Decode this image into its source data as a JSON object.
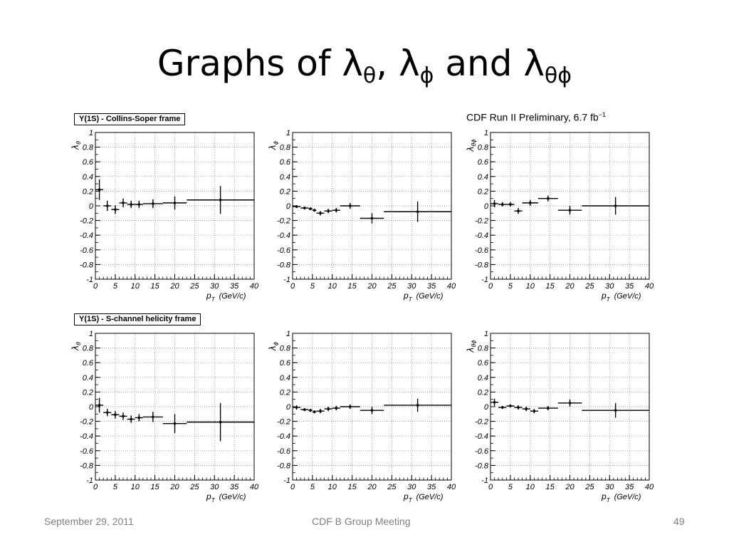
{
  "title": {
    "main": "Graphs of λ",
    "s1": "θ",
    "mid1": ", λ",
    "s2": "ϕ",
    "mid2": " and λ",
    "s3": "θϕ"
  },
  "preliminary": {
    "text": "CDF Run II Preliminary, 6.7 fb",
    "exp": "−1"
  },
  "frame_labels": {
    "top": "Υ(1S) - Collins-Soper frame",
    "bottom": "Υ(1S) - S-channel helicity frame"
  },
  "footer": {
    "date": "September 29, 2011",
    "center": "CDF B Group Meeting",
    "page": "49"
  },
  "chart_data": [
    {
      "type": "scatter",
      "ylabel_base": "λ",
      "ylabel_sub": "θ",
      "xlabel": "p",
      "xlabel_sub": "T",
      "xunit": "(GeV/c)",
      "xlim": [
        0,
        40
      ],
      "ylim": [
        -1,
        1
      ],
      "grid": true,
      "xticks": [
        "0",
        "5",
        "10",
        "15",
        "20",
        "25",
        "30",
        "35",
        "40"
      ],
      "yticks": [
        "1",
        "0.8",
        "0.6",
        "0.4",
        "0.2",
        "0",
        "-0.2",
        "-0.4",
        "-0.6",
        "-0.8",
        "-1"
      ],
      "points": [
        [
          1,
          0.22,
          0,
          2,
          0.14
        ],
        [
          3,
          0.0,
          2,
          4,
          0.07
        ],
        [
          5,
          -0.05,
          4,
          6,
          0.06
        ],
        [
          7,
          0.04,
          6,
          8,
          0.06
        ],
        [
          9,
          0.02,
          8,
          10,
          0.05
        ],
        [
          11,
          0.02,
          10,
          12,
          0.05
        ],
        [
          14.5,
          0.03,
          12,
          17,
          0.06
        ],
        [
          20,
          0.04,
          17,
          23,
          0.09
        ],
        [
          31.5,
          0.08,
          23,
          40,
          0.19
        ]
      ]
    },
    {
      "type": "scatter",
      "ylabel_base": "λ",
      "ylabel_sub": "ϕ",
      "xlabel": "p",
      "xlabel_sub": "T",
      "xunit": "(GeV/c)",
      "xlim": [
        0,
        40
      ],
      "ylim": [
        -1,
        1
      ],
      "grid": true,
      "xticks": [
        "0",
        "5",
        "10",
        "15",
        "20",
        "25",
        "30",
        "35",
        "40"
      ],
      "yticks": [
        "1",
        "0.8",
        "0.6",
        "0.4",
        "0.2",
        "0",
        "-0.2",
        "-0.4",
        "-0.6",
        "-0.8",
        "-1"
      ],
      "points": [
        [
          1,
          -0.01,
          0,
          2,
          0.02
        ],
        [
          3,
          -0.03,
          2,
          4,
          0.02
        ],
        [
          4.5,
          -0.04,
          4,
          5,
          0.02
        ],
        [
          5.5,
          -0.06,
          5,
          6,
          0.02
        ],
        [
          7,
          -0.1,
          6,
          8,
          0.03
        ],
        [
          9,
          -0.07,
          8,
          10,
          0.03
        ],
        [
          11,
          -0.06,
          10,
          12,
          0.03
        ],
        [
          14.5,
          0.0,
          12,
          17,
          0.04
        ],
        [
          20,
          -0.17,
          17,
          23,
          0.07
        ],
        [
          31.5,
          -0.08,
          23,
          40,
          0.14
        ]
      ]
    },
    {
      "type": "scatter",
      "ylabel_base": "λ",
      "ylabel_sub": "θϕ",
      "xlabel": "p",
      "xlabel_sub": "T",
      "xunit": "(GeV/c)",
      "xlim": [
        0,
        40
      ],
      "ylim": [
        -1,
        1
      ],
      "grid": true,
      "xticks": [
        "0",
        "5",
        "10",
        "15",
        "20",
        "25",
        "30",
        "35",
        "40"
      ],
      "yticks": [
        "1",
        "0.8",
        "0.6",
        "0.4",
        "0.2",
        "0",
        "-0.2",
        "-0.4",
        "-0.6",
        "-0.8",
        "-1"
      ],
      "points": [
        [
          1,
          0.03,
          0,
          2,
          0.05
        ],
        [
          3,
          0.02,
          2,
          4,
          0.03
        ],
        [
          5,
          0.02,
          4,
          6,
          0.03
        ],
        [
          7,
          -0.07,
          6,
          8,
          0.04
        ],
        [
          10,
          0.04,
          8,
          12,
          0.04
        ],
        [
          14.5,
          0.1,
          12,
          17,
          0.04
        ],
        [
          20,
          -0.06,
          17,
          23,
          0.06
        ],
        [
          31.5,
          0.0,
          23,
          40,
          0.12
        ]
      ]
    },
    {
      "type": "scatter",
      "ylabel_base": "λ",
      "ylabel_sub": "θ",
      "xlabel": "p",
      "xlabel_sub": "T",
      "xunit": "(GeV/c)",
      "xlim": [
        0,
        40
      ],
      "ylim": [
        -1,
        1
      ],
      "grid": true,
      "xticks": [
        "0",
        "5",
        "10",
        "15",
        "20",
        "25",
        "30",
        "35",
        "40"
      ],
      "yticks": [
        "1",
        "0.8",
        "0.6",
        "0.4",
        "0.2",
        "0",
        "-0.2",
        "-0.4",
        "-0.6",
        "-0.8",
        "-1"
      ],
      "points": [
        [
          1,
          0.02,
          0,
          2,
          0.1
        ],
        [
          3,
          -0.08,
          2,
          4,
          0.05
        ],
        [
          5,
          -0.11,
          4,
          6,
          0.05
        ],
        [
          7,
          -0.13,
          6,
          8,
          0.05
        ],
        [
          9,
          -0.17,
          8,
          10,
          0.05
        ],
        [
          11,
          -0.15,
          10,
          12,
          0.05
        ],
        [
          14.5,
          -0.14,
          12,
          17,
          0.07
        ],
        [
          20,
          -0.23,
          17,
          23,
          0.13
        ],
        [
          31.5,
          -0.21,
          23,
          40,
          0.26
        ]
      ]
    },
    {
      "type": "scatter",
      "ylabel_base": "λ",
      "ylabel_sub": "ϕ",
      "xlabel": "p",
      "xlabel_sub": "T",
      "xunit": "(GeV/c)",
      "xlim": [
        0,
        40
      ],
      "ylim": [
        -1,
        1
      ],
      "grid": true,
      "xticks": [
        "0",
        "5",
        "10",
        "15",
        "20",
        "25",
        "30",
        "35",
        "40"
      ],
      "yticks": [
        "1",
        "0.8",
        "0.6",
        "0.4",
        "0.2",
        "0",
        "-0.2",
        "-0.4",
        "-0.6",
        "-0.8",
        "-1"
      ],
      "points": [
        [
          1,
          -0.01,
          0,
          2,
          0.03
        ],
        [
          3,
          -0.04,
          2,
          4,
          0.02
        ],
        [
          4.5,
          -0.05,
          4,
          5,
          0.02
        ],
        [
          5.5,
          -0.07,
          5,
          6,
          0.02
        ],
        [
          7,
          -0.06,
          6,
          8,
          0.03
        ],
        [
          9,
          -0.03,
          8,
          10,
          0.03
        ],
        [
          11,
          -0.02,
          10,
          12,
          0.03
        ],
        [
          14.5,
          0.0,
          12,
          17,
          0.03
        ],
        [
          20,
          -0.05,
          17,
          23,
          0.05
        ],
        [
          31.5,
          0.02,
          23,
          40,
          0.09
        ]
      ]
    },
    {
      "type": "scatter",
      "ylabel_base": "λ",
      "ylabel_sub": "θϕ",
      "xlabel": "p",
      "xlabel_sub": "T",
      "xunit": "(GeV/c)",
      "xlim": [
        0,
        40
      ],
      "ylim": [
        -1,
        1
      ],
      "grid": true,
      "xticks": [
        "0",
        "5",
        "10",
        "15",
        "20",
        "25",
        "30",
        "35",
        "40"
      ],
      "yticks": [
        "1",
        "0.8",
        "0.6",
        "0.4",
        "0.2",
        "0",
        "-0.2",
        "-0.4",
        "-0.6",
        "-0.8",
        "-1"
      ],
      "points": [
        [
          1,
          0.06,
          0,
          2,
          0.05
        ],
        [
          3,
          -0.01,
          2,
          4,
          0.02
        ],
        [
          5,
          0.01,
          4,
          6,
          0.02
        ],
        [
          7,
          -0.01,
          6,
          8,
          0.03
        ],
        [
          9,
          -0.03,
          8,
          10,
          0.03
        ],
        [
          11,
          -0.06,
          10,
          12,
          0.03
        ],
        [
          14.5,
          -0.02,
          12,
          17,
          0.03
        ],
        [
          20,
          0.05,
          17,
          23,
          0.05
        ],
        [
          31.5,
          -0.05,
          23,
          40,
          0.1
        ]
      ]
    }
  ]
}
